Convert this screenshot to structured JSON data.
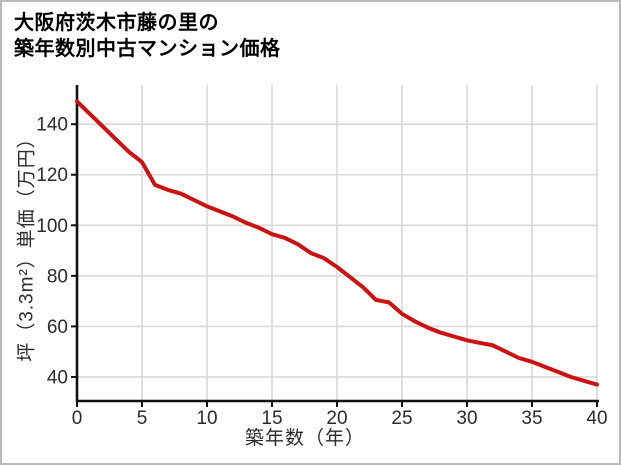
{
  "title": {
    "line1": "大阪府茨木市藤の里の",
    "line2": "築年数別中古マンション価格"
  },
  "chart_data": {
    "type": "line",
    "title": "大阪府茨木市藤の里の築年数別中古マンション価格",
    "xlabel": "築年数（年）",
    "ylabel": "坪（3.3m²）単価（万円）",
    "x": [
      0,
      1,
      2,
      3,
      4,
      5,
      6,
      7,
      8,
      9,
      10,
      11,
      12,
      13,
      14,
      15,
      16,
      17,
      18,
      19,
      20,
      21,
      22,
      23,
      24,
      25,
      26,
      27,
      28,
      29,
      30,
      31,
      32,
      33,
      34,
      35,
      36,
      37,
      38,
      39,
      40
    ],
    "values": [
      149,
      144,
      139,
      134,
      129,
      125,
      116,
      114,
      112.5,
      110,
      107.5,
      105.5,
      103.5,
      101,
      99,
      96.5,
      95,
      92.5,
      89,
      87,
      83.5,
      79.5,
      75.5,
      70.5,
      69.5,
      65,
      62,
      59.5,
      57.5,
      56,
      54.5,
      53.5,
      52.5,
      50,
      47.5,
      46,
      44,
      42,
      40,
      38.5,
      37
    ],
    "xticks": [
      0,
      5,
      10,
      15,
      20,
      25,
      30,
      35,
      40
    ],
    "yticks": [
      40,
      60,
      80,
      100,
      120,
      140
    ],
    "xlim": [
      0,
      40
    ],
    "ylim": [
      30.5,
      155.5
    ],
    "grid": true,
    "legend": "none",
    "line_color": "#cc1111",
    "axis_color": "#111111",
    "grid_color": "#d9d9d9",
    "tick_text_color": "#2b2b2b",
    "background": "#ffffff"
  }
}
